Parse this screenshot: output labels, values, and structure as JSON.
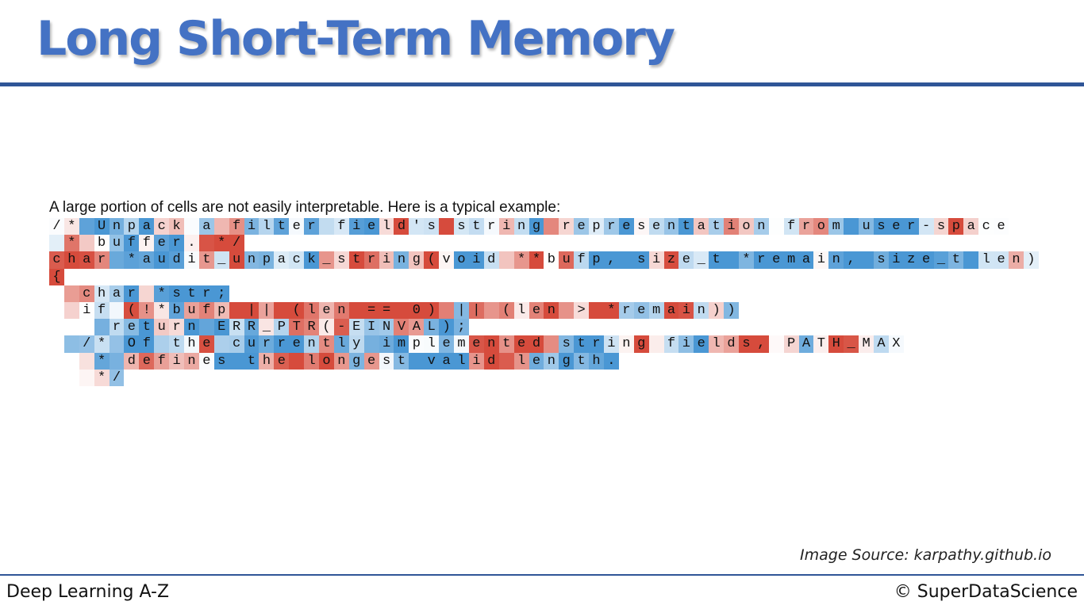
{
  "slide": {
    "title": "Long Short-Term Memory",
    "intro": "A large portion of cells are not easily interpretable. Here is a typical example:",
    "image_source": "Image Source: karpathy.github.io",
    "footer_left": "Deep Learning A-Z",
    "footer_right": "© SuperDataScience"
  },
  "colors": {
    "title": "#4472c4",
    "rule": "#2f5597",
    "activation_positive": "#d64b3c",
    "activation_negative": "#4a97d4"
  },
  "code_lines": [
    "/* Unpack a filter field's string representation from user-space",
    " * buffer. */",
    "char *audit_unpack_string(void **bufp, size_t *remain, size_t len)",
    "{",
    "  char *str;",
    "  if (!*bufp || (len == 0) || (len > *remain))",
    "    return ERR_PTR(-EINVAL);",
    "  /* Of the currently implemented string fields, PATH_MAX",
    "   * defines the longest valid length.",
    "   */"
  ]
}
